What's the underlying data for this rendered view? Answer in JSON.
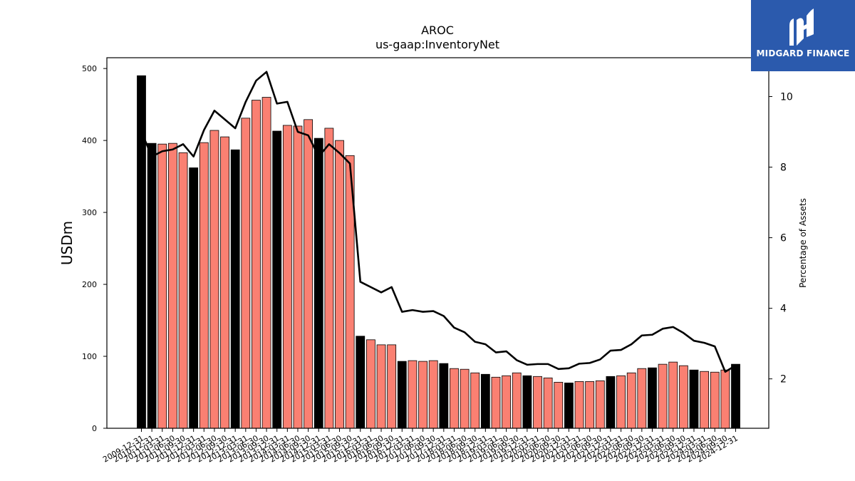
{
  "chart_data": {
    "type": "bar",
    "title": "AROC",
    "subtitle": "us-gaap:InventoryNet",
    "ylabel": "USDm",
    "y2label": "Percentage of Assets",
    "ylim": [
      0,
      515
    ],
    "y2lim": [
      0.6,
      11.1
    ],
    "yticks": [
      0,
      100,
      200,
      300,
      400,
      500
    ],
    "y2ticks": [
      2,
      4,
      6,
      8,
      10
    ],
    "grid": false,
    "categories": [
      "2009-12-31",
      "2010-12-31",
      "2011-03-31",
      "2011-06-30",
      "2011-09-30",
      "2011-12-31",
      "2012-03-31",
      "2012-06-30",
      "2012-09-30",
      "2012-12-31",
      "2013-03-31",
      "2013-06-30",
      "2013-09-30",
      "2013-12-31",
      "2014-03-31",
      "2014-06-30",
      "2014-09-30",
      "2014-12-31",
      "2015-03-31",
      "2015-06-30",
      "2015-09-30",
      "2015-12-31",
      "2016-03-31",
      "2016-06-30",
      "2016-09-30",
      "2016-12-31",
      "2017-03-31",
      "2017-06-30",
      "2017-09-30",
      "2017-12-31",
      "2018-03-31",
      "2018-06-30",
      "2018-09-30",
      "2018-12-31",
      "2019-03-31",
      "2019-06-30",
      "2019-09-30",
      "2019-12-31",
      "2020-03-31",
      "2020-06-30",
      "2020-09-30",
      "2020-12-31",
      "2021-03-31",
      "2021-06-30",
      "2021-09-30",
      "2021-12-31",
      "2022-03-31",
      "2022-06-30",
      "2022-09-30",
      "2022-12-31",
      "2023-03-31",
      "2023-06-30",
      "2023-09-30",
      "2023-12-31",
      "2024-03-31",
      "2024-06-30",
      "2024-09-30",
      "2024-12-31"
    ],
    "series": [
      {
        "kind": "bar",
        "values": [
          490,
          396,
          395,
          396,
          383,
          362,
          397,
          414,
          405,
          387,
          431,
          456,
          460,
          413,
          421,
          420,
          429,
          403,
          417,
          400,
          379,
          128,
          123,
          116,
          116,
          93,
          94,
          93,
          94,
          90,
          83,
          82,
          77,
          75,
          71,
          73,
          77,
          73,
          72,
          70,
          64,
          63,
          65,
          65,
          66,
          72,
          73,
          77,
          83,
          84,
          89,
          92,
          87,
          81,
          79,
          78,
          81,
          89
        ],
        "year_end_color": "#000000",
        "quarter_color": "#fa8072"
      },
      {
        "kind": "line",
        "axis": "right",
        "color": "#000000",
        "values": [
          9.0,
          8.3,
          8.45,
          8.5,
          8.65,
          8.3,
          9.05,
          9.6,
          9.35,
          9.1,
          9.85,
          10.45,
          10.7,
          9.8,
          9.85,
          9.0,
          8.9,
          8.3,
          8.65,
          8.4,
          8.1,
          4.75,
          4.6,
          4.45,
          4.6,
          3.9,
          3.95,
          3.9,
          3.92,
          3.78,
          3.45,
          3.32,
          3.05,
          2.98,
          2.75,
          2.78,
          2.53,
          2.4,
          2.42,
          2.42,
          2.28,
          2.3,
          2.43,
          2.45,
          2.55,
          2.8,
          2.82,
          2.98,
          3.23,
          3.25,
          3.42,
          3.47,
          3.3,
          3.08,
          3.02,
          2.92,
          2.2,
          2.38
        ]
      }
    ]
  },
  "logo": {
    "text": "MIDGARD FINANCE",
    "background": "#2b5aad"
  }
}
